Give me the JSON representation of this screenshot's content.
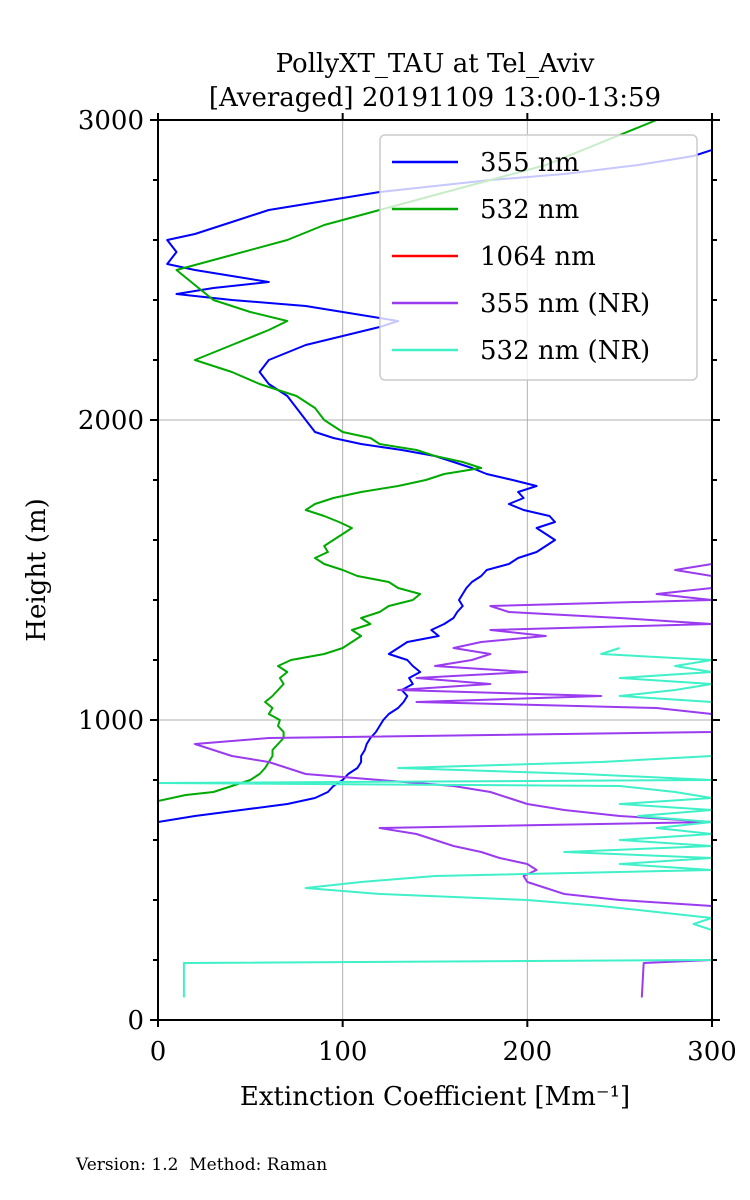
{
  "chart_data": {
    "type": "line",
    "title": "PollyXT_TAU at Tel_Aviv",
    "subtitle": "[Averaged] 20191109 13:00-13:59",
    "xlabel": "Extinction Coefficient [Mm⁻¹]",
    "ylabel": "Height (m)",
    "xlim": [
      0,
      300
    ],
    "ylim": [
      0,
      3000
    ],
    "x_ticks": [
      0,
      100,
      200,
      300
    ],
    "y_ticks": [
      0,
      1000,
      2000,
      3000
    ],
    "grid": true,
    "legend_position": "top-right",
    "series": [
      {
        "name": "355 nm",
        "color": "#0000ff",
        "points": [
          [
            0,
            660
          ],
          [
            20,
            680
          ],
          [
            45,
            700
          ],
          [
            70,
            720
          ],
          [
            85,
            740
          ],
          [
            92,
            760
          ],
          [
            95,
            780
          ],
          [
            100,
            800
          ],
          [
            103,
            820
          ],
          [
            108,
            840
          ],
          [
            110,
            860
          ],
          [
            110,
            880
          ],
          [
            112,
            900
          ],
          [
            113,
            920
          ],
          [
            115,
            940
          ],
          [
            118,
            960
          ],
          [
            120,
            980
          ],
          [
            122,
            1000
          ],
          [
            125,
            1020
          ],
          [
            130,
            1040
          ],
          [
            133,
            1060
          ],
          [
            135,
            1080
          ],
          [
            132,
            1100
          ],
          [
            138,
            1120
          ],
          [
            136,
            1140
          ],
          [
            142,
            1160
          ],
          [
            138,
            1180
          ],
          [
            135,
            1200
          ],
          [
            125,
            1220
          ],
          [
            130,
            1240
          ],
          [
            135,
            1260
          ],
          [
            152,
            1280
          ],
          [
            148,
            1300
          ],
          [
            155,
            1320
          ],
          [
            160,
            1340
          ],
          [
            162,
            1360
          ],
          [
            165,
            1380
          ],
          [
            163,
            1400
          ],
          [
            165,
            1420
          ],
          [
            167,
            1440
          ],
          [
            170,
            1460
          ],
          [
            175,
            1480
          ],
          [
            178,
            1500
          ],
          [
            190,
            1520
          ],
          [
            195,
            1540
          ],
          [
            205,
            1560
          ],
          [
            210,
            1580
          ],
          [
            215,
            1600
          ],
          [
            210,
            1620
          ],
          [
            205,
            1640
          ],
          [
            215,
            1660
          ],
          [
            212,
            1680
          ],
          [
            198,
            1700
          ],
          [
            190,
            1720
          ],
          [
            198,
            1740
          ],
          [
            195,
            1760
          ],
          [
            205,
            1780
          ],
          [
            192,
            1800
          ],
          [
            178,
            1820
          ],
          [
            170,
            1840
          ],
          [
            160,
            1860
          ],
          [
            150,
            1880
          ],
          [
            132,
            1900
          ],
          [
            110,
            1920
          ],
          [
            95,
            1940
          ],
          [
            85,
            1960
          ],
          [
            80,
            2000
          ],
          [
            75,
            2040
          ],
          [
            70,
            2080
          ],
          [
            60,
            2120
          ],
          [
            55,
            2160
          ],
          [
            60,
            2200
          ],
          [
            80,
            2250
          ],
          [
            100,
            2280
          ],
          [
            120,
            2310
          ],
          [
            130,
            2330
          ],
          [
            100,
            2360
          ],
          [
            80,
            2380
          ],
          [
            40,
            2400
          ],
          [
            10,
            2420
          ],
          [
            30,
            2440
          ],
          [
            60,
            2460
          ],
          [
            40,
            2480
          ],
          [
            20,
            2500
          ],
          [
            5,
            2520
          ],
          [
            10,
            2560
          ],
          [
            5,
            2600
          ],
          [
            20,
            2620
          ],
          [
            40,
            2660
          ],
          [
            60,
            2700
          ],
          [
            80,
            2720
          ],
          [
            100,
            2740
          ],
          [
            120,
            2760
          ],
          [
            150,
            2780
          ],
          [
            180,
            2800
          ],
          [
            220,
            2820
          ],
          [
            260,
            2850
          ],
          [
            290,
            2880
          ],
          [
            300,
            2900
          ]
        ]
      },
      {
        "name": "532 nm",
        "color": "#00aa00",
        "points": [
          [
            0,
            730
          ],
          [
            15,
            750
          ],
          [
            30,
            760
          ],
          [
            40,
            780
          ],
          [
            50,
            800
          ],
          [
            55,
            820
          ],
          [
            58,
            840
          ],
          [
            60,
            860
          ],
          [
            62,
            880
          ],
          [
            62,
            900
          ],
          [
            65,
            920
          ],
          [
            68,
            940
          ],
          [
            68,
            960
          ],
          [
            65,
            980
          ],
          [
            66,
            1000
          ],
          [
            60,
            1020
          ],
          [
            62,
            1040
          ],
          [
            58,
            1060
          ],
          [
            62,
            1080
          ],
          [
            65,
            1100
          ],
          [
            68,
            1120
          ],
          [
            66,
            1140
          ],
          [
            70,
            1160
          ],
          [
            65,
            1180
          ],
          [
            72,
            1200
          ],
          [
            90,
            1220
          ],
          [
            100,
            1240
          ],
          [
            105,
            1260
          ],
          [
            110,
            1280
          ],
          [
            105,
            1300
          ],
          [
            115,
            1320
          ],
          [
            110,
            1340
          ],
          [
            120,
            1360
          ],
          [
            125,
            1380
          ],
          [
            138,
            1400
          ],
          [
            142,
            1420
          ],
          [
            130,
            1440
          ],
          [
            125,
            1460
          ],
          [
            108,
            1480
          ],
          [
            100,
            1500
          ],
          [
            90,
            1520
          ],
          [
            85,
            1540
          ],
          [
            92,
            1560
          ],
          [
            90,
            1580
          ],
          [
            95,
            1600
          ],
          [
            100,
            1620
          ],
          [
            105,
            1640
          ],
          [
            98,
            1660
          ],
          [
            90,
            1680
          ],
          [
            80,
            1700
          ],
          [
            85,
            1720
          ],
          [
            95,
            1740
          ],
          [
            110,
            1760
          ],
          [
            130,
            1780
          ],
          [
            145,
            1800
          ],
          [
            155,
            1820
          ],
          [
            175,
            1840
          ],
          [
            165,
            1860
          ],
          [
            150,
            1880
          ],
          [
            140,
            1900
          ],
          [
            120,
            1920
          ],
          [
            115,
            1940
          ],
          [
            100,
            1960
          ],
          [
            95,
            1980
          ],
          [
            90,
            2000
          ],
          [
            85,
            2040
          ],
          [
            75,
            2080
          ],
          [
            55,
            2120
          ],
          [
            40,
            2160
          ],
          [
            20,
            2200
          ],
          [
            40,
            2250
          ],
          [
            60,
            2300
          ],
          [
            70,
            2330
          ],
          [
            50,
            2360
          ],
          [
            30,
            2400
          ],
          [
            20,
            2450
          ],
          [
            10,
            2500
          ],
          [
            40,
            2550
          ],
          [
            70,
            2600
          ],
          [
            90,
            2650
          ],
          [
            120,
            2700
          ],
          [
            150,
            2750
          ],
          [
            180,
            2800
          ],
          [
            210,
            2850
          ],
          [
            230,
            2900
          ],
          [
            250,
            2950
          ],
          [
            270,
            3000
          ]
        ]
      },
      {
        "name": "1064 nm",
        "color": "#ff0000",
        "points": []
      },
      {
        "name": "355 nm (NR)",
        "color": "#9b3bef",
        "points": [
          [
            262,
            75
          ],
          [
            263,
            190
          ],
          [
            300,
            200
          ],
          [
            300,
            380
          ],
          [
            250,
            400
          ],
          [
            220,
            420
          ],
          [
            210,
            440
          ],
          [
            200,
            460
          ],
          [
            198,
            480
          ],
          [
            205,
            500
          ],
          [
            200,
            520
          ],
          [
            185,
            540
          ],
          [
            175,
            560
          ],
          [
            160,
            580
          ],
          [
            150,
            600
          ],
          [
            140,
            620
          ],
          [
            120,
            640
          ],
          [
            300,
            660
          ],
          [
            250,
            680
          ],
          [
            220,
            700
          ],
          [
            200,
            720
          ],
          [
            190,
            740
          ],
          [
            180,
            760
          ],
          [
            160,
            780
          ],
          [
            120,
            800
          ],
          [
            80,
            820
          ],
          [
            70,
            840
          ],
          [
            60,
            860
          ],
          [
            40,
            880
          ],
          [
            30,
            900
          ],
          [
            20,
            920
          ],
          [
            60,
            940
          ],
          [
            300,
            960
          ],
          [
            300,
            980
          ],
          [
            300,
            1000
          ],
          [
            300,
            1020
          ],
          [
            270,
            1040
          ],
          [
            140,
            1060
          ],
          [
            240,
            1080
          ],
          [
            130,
            1100
          ],
          [
            180,
            1120
          ],
          [
            140,
            1140
          ],
          [
            200,
            1160
          ],
          [
            150,
            1180
          ],
          [
            170,
            1200
          ],
          [
            180,
            1220
          ],
          [
            160,
            1240
          ],
          [
            175,
            1260
          ],
          [
            210,
            1280
          ],
          [
            180,
            1300
          ],
          [
            300,
            1320
          ],
          [
            250,
            1340
          ],
          [
            190,
            1360
          ],
          [
            180,
            1380
          ],
          [
            300,
            1400
          ],
          [
            270,
            1420
          ],
          [
            300,
            1440
          ],
          [
            300,
            1460
          ],
          [
            300,
            1480
          ],
          [
            280,
            1500
          ],
          [
            300,
            1520
          ],
          [
            300,
            1560
          ],
          [
            300,
            1580
          ],
          [
            300,
            1600
          ],
          [
            300,
            1620
          ],
          [
            300,
            1640
          ]
        ]
      },
      {
        "name": "532 nm (NR)",
        "color": "#40f0c8",
        "points": [
          [
            14,
            75
          ],
          [
            14,
            190
          ],
          [
            300,
            200
          ],
          [
            300,
            300
          ],
          [
            290,
            320
          ],
          [
            300,
            340
          ],
          [
            270,
            360
          ],
          [
            240,
            380
          ],
          [
            200,
            400
          ],
          [
            120,
            420
          ],
          [
            80,
            440
          ],
          [
            110,
            460
          ],
          [
            150,
            480
          ],
          [
            300,
            500
          ],
          [
            250,
            520
          ],
          [
            300,
            540
          ],
          [
            220,
            560
          ],
          [
            300,
            580
          ],
          [
            250,
            600
          ],
          [
            300,
            620
          ],
          [
            270,
            640
          ],
          [
            300,
            660
          ],
          [
            260,
            680
          ],
          [
            300,
            700
          ],
          [
            250,
            720
          ],
          [
            300,
            740
          ],
          [
            280,
            760
          ],
          [
            250,
            780
          ],
          [
            0,
            790
          ],
          [
            300,
            800
          ],
          [
            230,
            820
          ],
          [
            130,
            840
          ],
          [
            240,
            860
          ],
          [
            300,
            880
          ],
          [
            300,
            900
          ],
          [
            300,
            920
          ],
          [
            300,
            940
          ],
          [
            300,
            960
          ],
          [
            300,
            980
          ],
          [
            300,
            1000
          ],
          [
            300,
            1020
          ],
          [
            300,
            1040
          ],
          [
            300,
            1060
          ],
          [
            250,
            1080
          ],
          [
            280,
            1100
          ],
          [
            300,
            1120
          ],
          [
            250,
            1140
          ],
          [
            300,
            1160
          ],
          [
            280,
            1180
          ],
          [
            300,
            1200
          ],
          [
            240,
            1220
          ],
          [
            250,
            1240
          ]
        ]
      }
    ],
    "footer": "Version: 1.2  Method: Raman"
  }
}
